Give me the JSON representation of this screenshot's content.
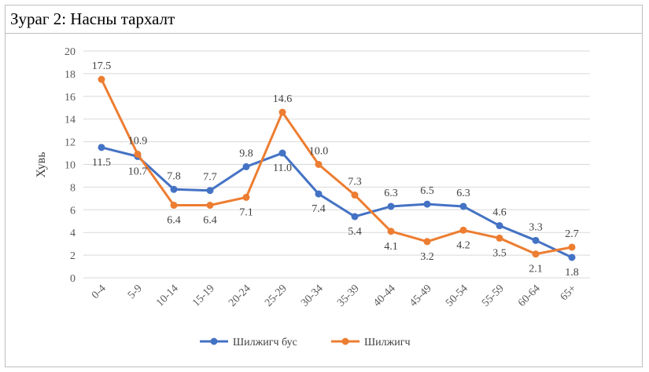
{
  "figure": {
    "title": "Зураг 2: Насны тархалт"
  },
  "chart_data": {
    "type": "line",
    "title": "",
    "xlabel": "",
    "ylabel": "Хувь",
    "ylim": [
      0,
      20
    ],
    "yticks": [
      0,
      2,
      4,
      6,
      8,
      10,
      12,
      14,
      16,
      18,
      20
    ],
    "grid": true,
    "legend_position": "bottom",
    "categories": [
      "0-4",
      "5-9",
      "10-14",
      "15-19",
      "20-24",
      "25-29",
      "30-34",
      "35-39",
      "40-44",
      "45-49",
      "50-54",
      "55-59",
      "60-64",
      "65+"
    ],
    "series": [
      {
        "name": "Шилжигч бус",
        "color": "#4472c4",
        "values": [
          11.5,
          10.7,
          7.8,
          7.7,
          9.8,
          11.0,
          7.4,
          5.4,
          6.3,
          6.5,
          6.3,
          4.6,
          3.3,
          1.8
        ],
        "labels": [
          "11.5",
          "10.7",
          "7.8",
          "7.7",
          "9.8",
          "11.0",
          "7.4",
          "5.4",
          "6.3",
          "6.5",
          "6.3",
          "4.6",
          "3.3",
          "1.8"
        ]
      },
      {
        "name": "Шилжигч",
        "color": "#ed7d31",
        "values": [
          17.5,
          10.9,
          6.4,
          6.4,
          7.1,
          14.6,
          10.0,
          7.3,
          4.1,
          3.2,
          4.2,
          3.5,
          2.1,
          2.7
        ],
        "labels": [
          "17.5",
          "10.9",
          "6.4",
          "6.4",
          "7.1",
          "14.6",
          "10.0",
          "7.3",
          "4.1",
          "3.2",
          "4.2",
          "3.5",
          "2.1",
          "2.7"
        ]
      }
    ]
  }
}
